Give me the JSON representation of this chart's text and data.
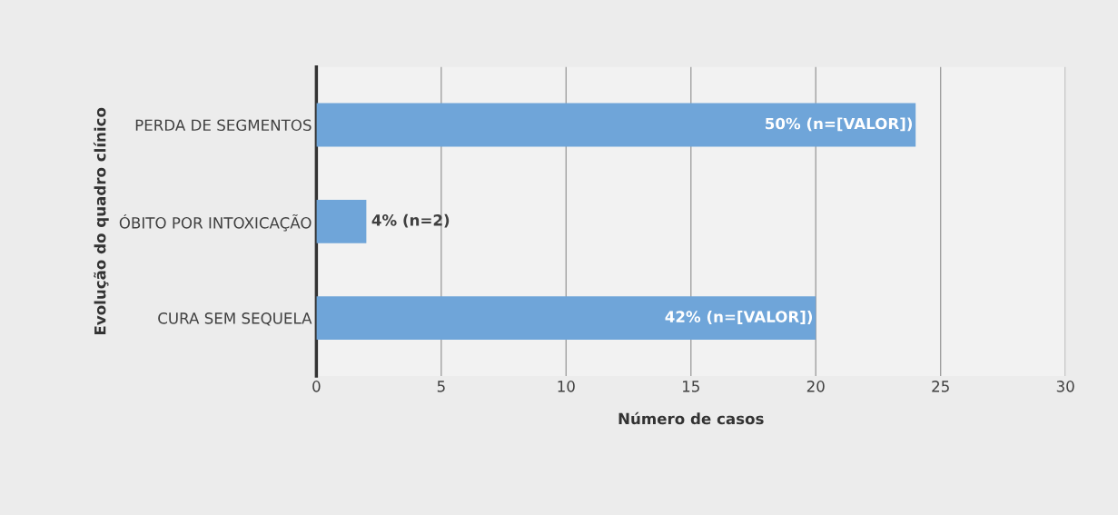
{
  "chart_data": {
    "type": "bar",
    "orientation": "horizontal",
    "xlabel": "Número de casos",
    "ylabel": "Evolução do quadro clínico",
    "categories": [
      "PERDA DE SEGMENTOS",
      "ÓBITO POR INTOXICAÇÃO",
      "CURA SEM SEQUELA"
    ],
    "values": [
      24,
      2,
      20
    ],
    "color": "#6fa5d9",
    "annotations": [
      {
        "text": "50% (n=[VALOR])",
        "x": 24,
        "y": "PERDA DE SEGMENTOS"
      },
      {
        "text": "4% (n=2)",
        "x": 2,
        "y": "ÓBITO POR INTOXICAÇÃO"
      },
      {
        "text": "42% (n=[VALOR])",
        "x": 20,
        "y": "CURA SEM SEQUELA"
      }
    ],
    "xlim": [
      0,
      30
    ],
    "xticks": [
      0,
      5,
      10,
      15,
      20,
      25,
      30
    ],
    "grid": "x",
    "legend": false
  }
}
